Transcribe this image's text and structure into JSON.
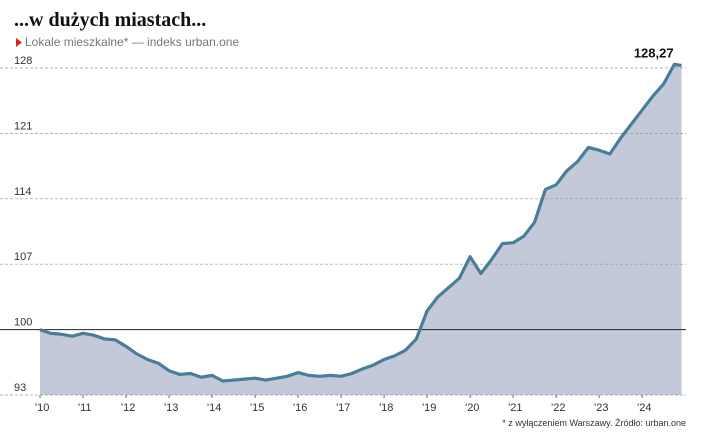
{
  "chart_data": {
    "type": "area-line",
    "title": "...w dużych miastach...",
    "subtitle": "Lokale mieszkalne* — indeks urban.one",
    "footnote": "* z wyłączeniem Warszawy. Źródło: urban.one",
    "x": [
      2010,
      2010.25,
      2010.5,
      2010.75,
      2011,
      2011.25,
      2011.5,
      2011.75,
      2012,
      2012.25,
      2012.5,
      2012.75,
      2013,
      2013.25,
      2013.5,
      2013.75,
      2014,
      2014.25,
      2014.5,
      2014.75,
      2015,
      2015.25,
      2015.5,
      2015.75,
      2016,
      2016.25,
      2016.5,
      2016.75,
      2017,
      2017.25,
      2017.5,
      2017.75,
      2018,
      2018.25,
      2018.5,
      2018.75,
      2019,
      2019.25,
      2019.5,
      2019.75,
      2020,
      2020.25,
      2020.5,
      2020.75,
      2021,
      2021.25,
      2021.5,
      2021.75,
      2022,
      2022.25,
      2022.5,
      2022.75,
      2023,
      2023.25,
      2023.5,
      2023.75,
      2024,
      2024.25,
      2024.5,
      2024.75,
      2024.917
    ],
    "values": [
      100.0,
      99.6,
      99.5,
      99.3,
      99.6,
      99.4,
      99.0,
      98.9,
      98.2,
      97.4,
      96.8,
      96.4,
      95.6,
      95.2,
      95.3,
      94.9,
      95.1,
      94.5,
      94.6,
      94.7,
      94.8,
      94.6,
      94.8,
      95.0,
      95.4,
      95.1,
      95.0,
      95.1,
      95.0,
      95.3,
      95.8,
      96.2,
      96.8,
      97.2,
      97.8,
      99.0,
      102.0,
      103.5,
      104.5,
      105.5,
      107.8,
      106.0,
      107.5,
      109.2,
      109.3,
      110.0,
      111.5,
      115.0,
      115.5,
      117.0,
      118.0,
      119.5,
      119.2,
      118.8,
      120.5,
      122.0,
      123.5,
      125.0,
      126.3,
      128.4,
      128.27
    ],
    "value_labels": [
      null,
      null,
      null,
      null,
      null,
      null,
      null,
      null,
      null,
      null,
      null,
      null,
      null,
      null,
      null,
      null,
      null,
      null,
      null,
      null,
      null,
      null,
      null,
      null,
      null,
      null,
      null,
      null,
      null,
      null,
      null,
      null,
      null,
      null,
      null,
      null,
      null,
      null,
      null,
      null,
      null,
      null,
      null,
      null,
      null,
      null,
      null,
      null,
      null,
      null,
      null,
      null,
      null,
      null,
      null,
      null,
      null,
      null,
      null,
      null,
      "128,27"
    ],
    "color": "#4a7d9a",
    "area_color": "#c3c9d9",
    "marker_color": "#d9261c",
    "xlim": [
      2010,
      2024.95
    ],
    "ylim": [
      93,
      129.5
    ],
    "xticks": [
      {
        "value": 2010,
        "label": "'10"
      },
      {
        "value": 2011,
        "label": "'11"
      },
      {
        "value": 2012,
        "label": "'12"
      },
      {
        "value": 2013,
        "label": "'13"
      },
      {
        "value": 2014,
        "label": "'14"
      },
      {
        "value": 2015,
        "label": "'15"
      },
      {
        "value": 2016,
        "label": "'16"
      },
      {
        "value": 2017,
        "label": "'17"
      },
      {
        "value": 2018,
        "label": "'18"
      },
      {
        "value": 2019,
        "label": "'19"
      },
      {
        "value": 2020,
        "label": "'20"
      },
      {
        "value": 2021,
        "label": "'21"
      },
      {
        "value": 2022,
        "label": "'22"
      },
      {
        "value": 2023,
        "label": "'23"
      },
      {
        "value": 2024,
        "label": "'24"
      }
    ],
    "yticks": [
      93,
      100,
      107,
      114,
      121,
      128
    ],
    "baseline": 100,
    "grid": true
  }
}
